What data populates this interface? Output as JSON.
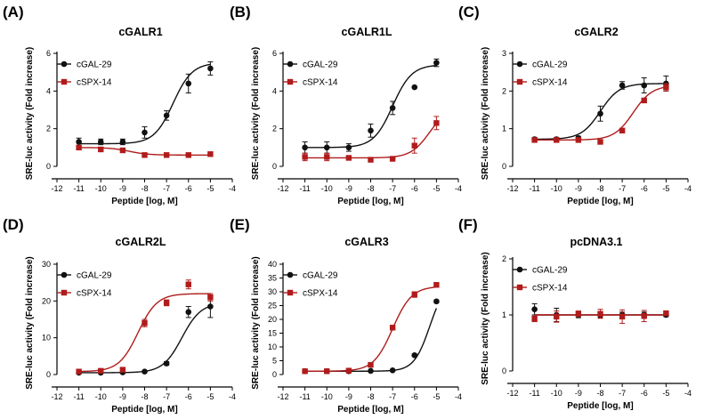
{
  "series_styles": {
    "cGAL-29": {
      "color": "#111111",
      "marker": "circle"
    },
    "cSPX-14": {
      "color": "#b01c1c",
      "marker": "square"
    }
  },
  "chart_data": [
    {
      "type": "line",
      "letter": "(A)",
      "title": "cGALR1",
      "xlabel": "Peptide [log, M]",
      "ylabel": "SRE-luc activity (Fold increase)",
      "xlim": [
        -12,
        -4
      ],
      "ylim": [
        0,
        6
      ],
      "xticks": [
        -12,
        -11,
        -10,
        -9,
        -8,
        -7,
        -6,
        -5,
        -4
      ],
      "yticks": [
        0,
        2,
        4,
        6
      ],
      "legend": "top-left",
      "grid": false,
      "x": [
        -11,
        -10,
        -9,
        -8,
        -7,
        -6,
        -5
      ],
      "series": [
        {
          "name": "cGAL-29",
          "values": [
            1.3,
            1.3,
            1.3,
            1.8,
            2.7,
            4.4,
            5.2
          ],
          "errors": [
            0.2,
            0.15,
            0.15,
            0.3,
            0.25,
            0.5,
            0.35
          ],
          "fit": {
            "bottom": 1.2,
            "top": 5.5,
            "logEC50": -6.7,
            "hill": 1
          }
        },
        {
          "name": "cSPX-14",
          "values": [
            1.0,
            0.9,
            0.85,
            0.6,
            0.6,
            0.6,
            0.65
          ],
          "errors": [
            0.1,
            0.1,
            0.08,
            0.05,
            0.05,
            0.05,
            0.05
          ],
          "fit": {
            "bottom": 0.6,
            "top": 1.0,
            "logEC50": -8.7,
            "hill": -1
          }
        }
      ]
    },
    {
      "type": "line",
      "letter": "(B)",
      "title": "cGALR1L",
      "xlabel": "Peptide [log, M]",
      "ylabel": "SRE-luc activity (Fold increase)",
      "xlim": [
        -12,
        -4
      ],
      "ylim": [
        0,
        6
      ],
      "xticks": [
        -12,
        -11,
        -10,
        -9,
        -8,
        -7,
        -6,
        -5,
        -4
      ],
      "yticks": [
        0,
        2,
        4,
        6
      ],
      "legend": "top-left",
      "grid": false,
      "x": [
        -11,
        -10,
        -9,
        -8,
        -7,
        -6,
        -5
      ],
      "series": [
        {
          "name": "cGAL-29",
          "values": [
            1.0,
            1.0,
            1.0,
            1.9,
            3.1,
            4.2,
            5.5
          ],
          "errors": [
            0.3,
            0.3,
            0.2,
            0.35,
            0.35,
            0.0,
            0.2
          ],
          "fit": {
            "bottom": 1.0,
            "top": 5.4,
            "logEC50": -7.0,
            "hill": 1
          }
        },
        {
          "name": "cSPX-14",
          "values": [
            0.5,
            0.5,
            0.45,
            0.35,
            0.4,
            1.1,
            2.3
          ],
          "errors": [
            0.2,
            0.2,
            0.1,
            0.05,
            0.05,
            0.4,
            0.35
          ],
          "fit": {
            "bottom": 0.45,
            "top": 3.2,
            "logEC50": -5.3,
            "hill": 1
          }
        }
      ]
    },
    {
      "type": "line",
      "letter": "(C)",
      "title": "cGALR2",
      "xlabel": "Peptide [log, M]",
      "ylabel": "SRE-luc activity (Fold increase)",
      "xlim": [
        -12,
        -4
      ],
      "ylim": [
        0,
        3
      ],
      "xticks": [
        -12,
        -11,
        -10,
        -9,
        -8,
        -7,
        -6,
        -5,
        -4
      ],
      "yticks": [
        0,
        1,
        2,
        3
      ],
      "legend": "top-left",
      "grid": false,
      "x": [
        -11,
        -10,
        -9,
        -8,
        -7,
        -6,
        -5
      ],
      "series": [
        {
          "name": "cGAL-29",
          "values": [
            0.72,
            0.72,
            0.75,
            1.4,
            2.15,
            2.15,
            2.2
          ],
          "errors": [
            0.05,
            0.05,
            0.05,
            0.2,
            0.1,
            0.2,
            0.2
          ],
          "fit": {
            "bottom": 0.72,
            "top": 2.2,
            "logEC50": -8.0,
            "hill": 1
          }
        },
        {
          "name": "cSPX-14",
          "values": [
            0.7,
            0.7,
            0.7,
            0.65,
            0.95,
            1.75,
            2.1
          ],
          "errors": [
            0.03,
            0.03,
            0.03,
            0.03,
            0.05,
            0.05,
            0.1
          ],
          "fit": {
            "bottom": 0.7,
            "top": 2.15,
            "logEC50": -6.5,
            "hill": 1
          }
        }
      ]
    },
    {
      "type": "line",
      "letter": "(D)",
      "title": "cGALR2L",
      "xlabel": "Peptide [log, M]",
      "ylabel": "SRE-luc activity (Fold increase)",
      "xlim": [
        -12,
        -4
      ],
      "ylim": [
        0,
        30
      ],
      "xticks": [
        -12,
        -11,
        -10,
        -9,
        -8,
        -7,
        -6,
        -5,
        -4
      ],
      "yticks": [
        0,
        10,
        20,
        30
      ],
      "legend": "top-left",
      "grid": false,
      "x": [
        -11,
        -10,
        -9,
        -8,
        -7,
        -6,
        -5
      ],
      "series": [
        {
          "name": "cGAL-29",
          "values": [
            0.5,
            0.5,
            0.6,
            0.8,
            3.0,
            17.0,
            18.5
          ],
          "errors": [
            0.3,
            0.3,
            0.3,
            0.3,
            0.5,
            1.5,
            3.0
          ],
          "fit": {
            "bottom": 0.5,
            "top": 19.5,
            "logEC50": -6.3,
            "hill": 1
          }
        },
        {
          "name": "cSPX-14",
          "values": [
            0.8,
            1.0,
            1.3,
            14.0,
            19.5,
            24.5,
            21.0
          ],
          "errors": [
            0.3,
            0.5,
            0.5,
            1.0,
            0.8,
            1.2,
            1.0
          ],
          "fit": {
            "bottom": 0.8,
            "top": 22.0,
            "logEC50": -8.3,
            "hill": 1
          }
        }
      ]
    },
    {
      "type": "line",
      "letter": "(E)",
      "title": "cGALR3",
      "xlabel": "Peptide [log, M]",
      "ylabel": "SRE-luc activity (Fold increase)",
      "xlim": [
        -12,
        -4
      ],
      "ylim": [
        0,
        40
      ],
      "xticks": [
        -12,
        -11,
        -10,
        -9,
        -8,
        -7,
        -6,
        -5,
        -4
      ],
      "yticks": [
        0,
        5,
        10,
        15,
        20,
        25,
        30,
        35,
        40
      ],
      "legend": "top-left",
      "grid": false,
      "x": [
        -11,
        -10,
        -9,
        -8,
        -7,
        -6,
        -5
      ],
      "series": [
        {
          "name": "cGAL-29",
          "values": [
            1.2,
            1.2,
            1.2,
            1.3,
            1.5,
            7.0,
            26.5
          ],
          "errors": [
            0.2,
            0.2,
            0.2,
            0.2,
            0.2,
            0.5,
            0.5
          ],
          "fit": {
            "bottom": 1.2,
            "top": 34.0,
            "logEC50": -5.3,
            "hill": 1.2
          }
        },
        {
          "name": "cSPX-14",
          "values": [
            1.2,
            1.2,
            1.4,
            3.5,
            17.0,
            29.0,
            32.5
          ],
          "errors": [
            0.2,
            0.2,
            0.3,
            0.3,
            0.8,
            1.0,
            0.8
          ],
          "fit": {
            "bottom": 1.2,
            "top": 32.0,
            "logEC50": -7.0,
            "hill": 1
          }
        }
      ]
    },
    {
      "type": "line",
      "letter": "(F)",
      "title": "pcDNA3.1",
      "xlabel": "Peptide [log, M]",
      "ylabel": "SRE-luc activity (Fold increase)",
      "xlim": [
        -12,
        -4
      ],
      "ylim": [
        0,
        2
      ],
      "xticks": [
        -12,
        -11,
        -10,
        -9,
        -8,
        -7,
        -6,
        -5,
        -4
      ],
      "yticks": [
        0,
        1,
        2
      ],
      "legend": "top-left",
      "grid": false,
      "x": [
        -11,
        -10,
        -9,
        -8,
        -7,
        -6,
        -5
      ],
      "series": [
        {
          "name": "cGAL-29",
          "values": [
            1.1,
            1.0,
            1.0,
            1.0,
            1.0,
            1.0,
            1.0
          ],
          "errors": [
            0.1,
            0.12,
            0.05,
            0.05,
            0.05,
            0.05,
            0.03
          ],
          "fit": {
            "bottom": 1.0,
            "top": 1.0,
            "logEC50": -8,
            "hill": 1
          }
        },
        {
          "name": "cSPX-14",
          "values": [
            0.93,
            0.97,
            1.02,
            1.02,
            0.97,
            0.98,
            1.03
          ],
          "errors": [
            0.05,
            0.1,
            0.05,
            0.08,
            0.12,
            0.1,
            0.03
          ],
          "fit": {
            "bottom": 1.0,
            "top": 1.0,
            "logEC50": -8,
            "hill": 1
          }
        }
      ]
    }
  ]
}
